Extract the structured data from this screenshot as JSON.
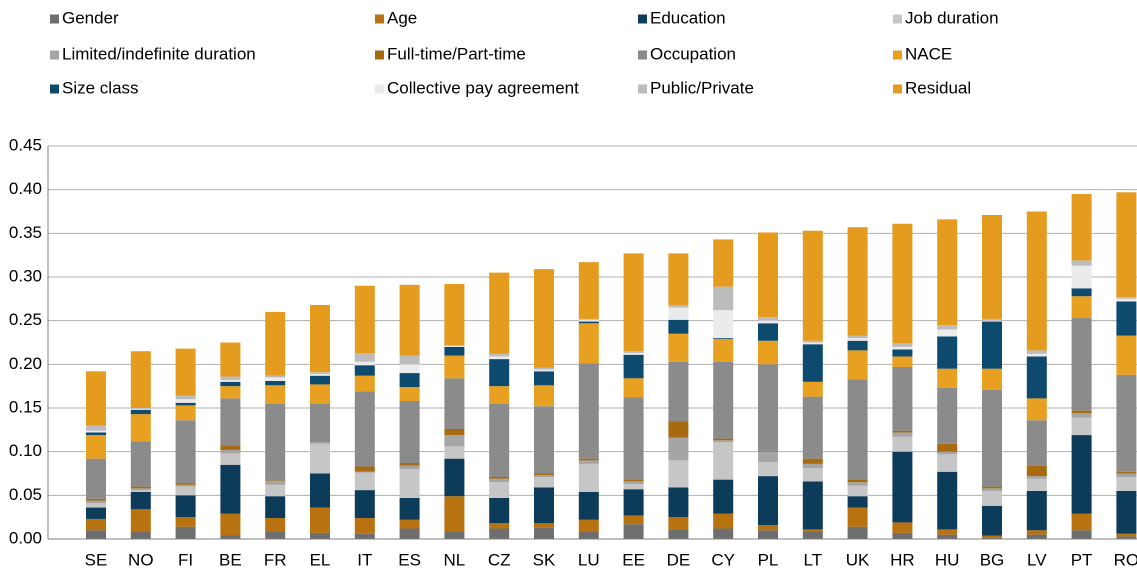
{
  "chart_data": {
    "type": "stacked_bar",
    "categories": [
      "SE",
      "NO",
      "FI",
      "BE",
      "FR",
      "EL",
      "IT",
      "ES",
      "NL",
      "CZ",
      "SK",
      "LU",
      "EE",
      "DE",
      "CY",
      "PL",
      "LT",
      "UK",
      "HR",
      "HU",
      "BG",
      "LV",
      "PT",
      "RO"
    ],
    "ylim": [
      0,
      0.45
    ],
    "yticks": [
      {
        "value": 0,
        "label": "0.00"
      },
      {
        "value": 0.05,
        "label": "0.05"
      },
      {
        "value": 0.1,
        "label": "0.10"
      },
      {
        "value": 0.15,
        "label": "0.15"
      },
      {
        "value": 0.2,
        "label": "0.20"
      },
      {
        "value": 0.25,
        "label": "0.25"
      },
      {
        "value": 0.3,
        "label": "0.30"
      },
      {
        "value": 0.35,
        "label": "0.35"
      },
      {
        "value": 0.4,
        "label": "0.40"
      },
      {
        "value": 0.45,
        "label": "0.45"
      }
    ],
    "grid": true,
    "legend": "top",
    "series": [
      {
        "name": "Gender",
        "color": "#6e6e6e",
        "values": [
          0.01,
          0.008,
          0.014,
          0.004,
          0.008,
          0.007,
          0.006,
          0.012,
          0.008,
          0.012,
          0.013,
          0.008,
          0.017,
          0.011,
          0.012,
          0.01,
          0.009,
          0.014,
          0.007,
          0.005,
          0.002,
          0.005,
          0.01,
          0.003
        ]
      },
      {
        "name": "Age",
        "color": "#b8720f",
        "values": [
          0.013,
          0.026,
          0.011,
          0.025,
          0.016,
          0.029,
          0.018,
          0.01,
          0.041,
          0.006,
          0.005,
          0.014,
          0.01,
          0.014,
          0.017,
          0.006,
          0.002,
          0.022,
          0.012,
          0.006,
          0.002,
          0.005,
          0.019,
          0.003
        ]
      },
      {
        "name": "Education",
        "color": "#0d3b5a",
        "values": [
          0.013,
          0.02,
          0.025,
          0.056,
          0.025,
          0.039,
          0.032,
          0.025,
          0.043,
          0.029,
          0.041,
          0.032,
          0.03,
          0.034,
          0.039,
          0.056,
          0.055,
          0.013,
          0.081,
          0.066,
          0.034,
          0.045,
          0.09,
          0.049
        ]
      },
      {
        "name": "Job duration",
        "color": "#c6c6c6",
        "values": [
          0.005,
          0.002,
          0.01,
          0.013,
          0.013,
          0.034,
          0.02,
          0.033,
          0.014,
          0.018,
          0.012,
          0.032,
          0.006,
          0.031,
          0.043,
          0.016,
          0.015,
          0.012,
          0.017,
          0.02,
          0.017,
          0.014,
          0.02,
          0.016
        ]
      },
      {
        "name": "Limited/indefinite duration",
        "color": "#a5a5a5",
        "values": [
          0.003,
          0.002,
          0.002,
          0.004,
          0.005,
          0.002,
          0.001,
          0.004,
          0.013,
          0.004,
          0.002,
          0.004,
          0.003,
          0.026,
          0.002,
          0.012,
          0.005,
          0.004,
          0.005,
          0.003,
          0.003,
          0.003,
          0.005,
          0.004
        ]
      },
      {
        "name": "Full-time/Part-time",
        "color": "#a86a0e",
        "values": [
          0.002,
          0.002,
          0.002,
          0.005,
          0.001,
          0.001,
          0.006,
          0.003,
          0.007,
          0.002,
          0.002,
          0.002,
          0.002,
          0.019,
          0.002,
          0.001,
          0.006,
          0.003,
          0.002,
          0.009,
          0.002,
          0.012,
          0.003,
          0.002
        ]
      },
      {
        "name": "Occupation",
        "color": "#8b8b8b",
        "values": [
          0.046,
          0.052,
          0.072,
          0.054,
          0.087,
          0.043,
          0.086,
          0.071,
          0.058,
          0.084,
          0.077,
          0.109,
          0.094,
          0.068,
          0.088,
          0.099,
          0.071,
          0.115,
          0.073,
          0.064,
          0.111,
          0.052,
          0.106,
          0.111
        ]
      },
      {
        "name": "NACE",
        "color": "#e8a020",
        "values": [
          0.027,
          0.031,
          0.017,
          0.014,
          0.021,
          0.022,
          0.018,
          0.016,
          0.026,
          0.02,
          0.024,
          0.046,
          0.022,
          0.032,
          0.026,
          0.027,
          0.017,
          0.033,
          0.012,
          0.022,
          0.024,
          0.025,
          0.025,
          0.045
        ]
      },
      {
        "name": "Size class",
        "color": "#0e4a6e",
        "values": [
          0.003,
          0.005,
          0.003,
          0.005,
          0.005,
          0.01,
          0.012,
          0.016,
          0.01,
          0.031,
          0.016,
          0.002,
          0.027,
          0.016,
          0.001,
          0.02,
          0.043,
          0.011,
          0.008,
          0.037,
          0.054,
          0.048,
          0.009,
          0.039
        ]
      },
      {
        "name": "Collective pay agreement",
        "color": "#ebebeb",
        "values": [
          0.002,
          0.001,
          0.004,
          0.002,
          0.004,
          0.002,
          0.004,
          0.01,
          0.001,
          0.003,
          0.002,
          0.002,
          0.002,
          0.014,
          0.032,
          0.003,
          0.002,
          0.003,
          0.003,
          0.008,
          0.001,
          0.003,
          0.026,
          0.003
        ]
      },
      {
        "name": "Public/Private",
        "color": "#bcbcbc",
        "values": [
          0.006,
          0.001,
          0.004,
          0.004,
          0.002,
          0.002,
          0.01,
          0.01,
          0.001,
          0.003,
          0.002,
          0.001,
          0.002,
          0.003,
          0.027,
          0.004,
          0.002,
          0.003,
          0.004,
          0.005,
          0.002,
          0.004,
          0.006,
          0.002
        ]
      },
      {
        "name": "Residual",
        "color": "#e59b1d",
        "values": [
          0.062,
          0.065,
          0.054,
          0.039,
          0.073,
          0.077,
          0.077,
          0.081,
          0.07,
          0.093,
          0.113,
          0.065,
          0.112,
          0.059,
          0.054,
          0.097,
          0.126,
          0.124,
          0.137,
          0.121,
          0.119,
          0.159,
          0.076,
          0.12
        ]
      }
    ]
  }
}
